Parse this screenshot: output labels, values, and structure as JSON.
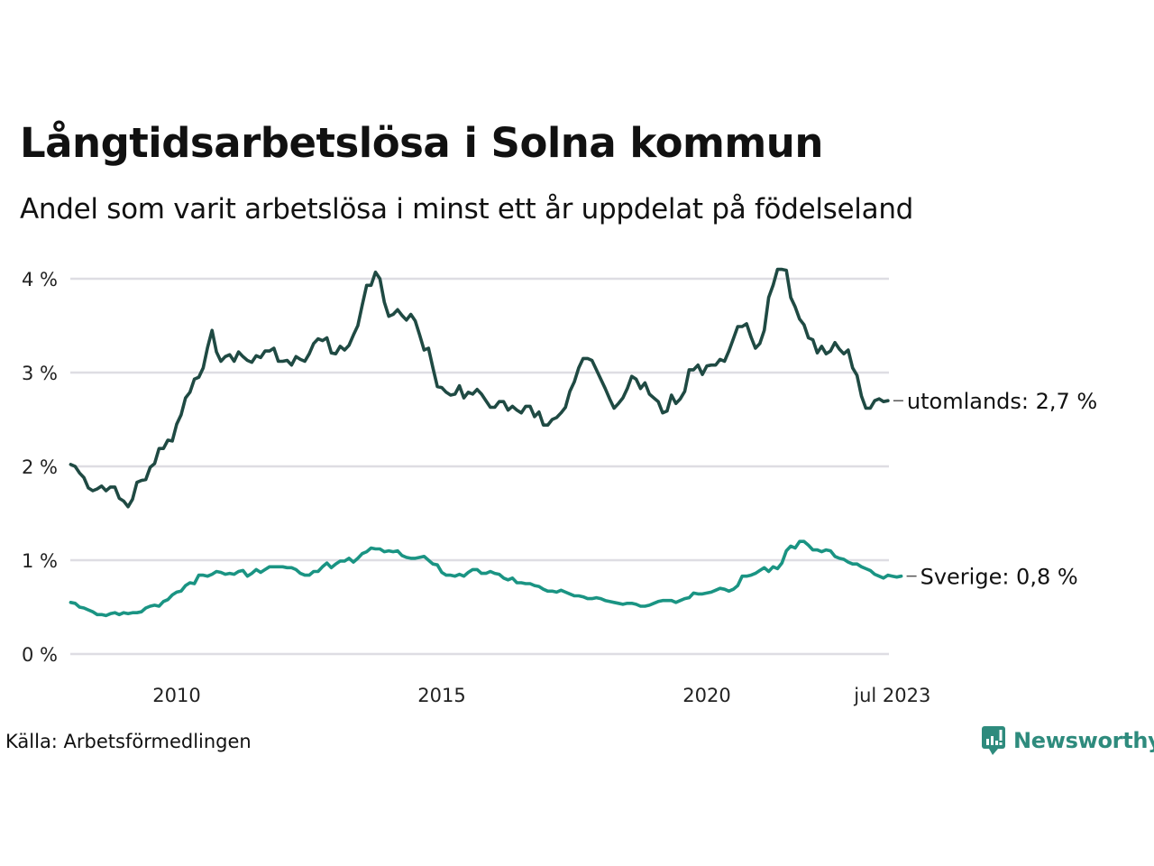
{
  "header": {
    "title": "Långtidsarbetslösa i Solna kommun",
    "subtitle": "Andel som varit arbetslösa i minst ett år uppdelat på födelseland"
  },
  "footer": {
    "source": "Källa: Arbetsförmedlingen",
    "brand": "Newsworthy",
    "brand_icon": "chart-bubble-icon",
    "brand_color": "#2e8b7d"
  },
  "chart_data": {
    "type": "line",
    "title": "Långtidsarbetslösa i Solna kommun",
    "subtitle": "Andel som varit arbetslösa i minst ett år uppdelat på födelseland",
    "xlabel": "",
    "ylabel": "",
    "x_start": "2008-01",
    "x_end": "2023-07",
    "x_frequency": "monthly",
    "x_ticks": [
      {
        "label": "2010",
        "year": 2010.0
      },
      {
        "label": "2015",
        "year": 2015.0
      },
      {
        "label": "2020",
        "year": 2020.0
      },
      {
        "label": "jul 2023",
        "year": 2023.5
      }
    ],
    "y_ticks": [
      {
        "label": "0 %",
        "value": 0
      },
      {
        "label": "1 %",
        "value": 1
      },
      {
        "label": "2 %",
        "value": 2
      },
      {
        "label": "3 %",
        "value": 3
      },
      {
        "label": "4 %",
        "value": 4
      }
    ],
    "ylim": [
      0,
      4
    ],
    "grid": "horizontal",
    "legend": "end-labels-right",
    "series": [
      {
        "name": "utomlands",
        "end_label": "utomlands: 2,7 %",
        "color": "#1f4a43",
        "values": [
          2.02,
          2.0,
          1.93,
          1.88,
          1.77,
          1.74,
          1.76,
          1.79,
          1.74,
          1.78,
          1.78,
          1.66,
          1.63,
          1.57,
          1.65,
          1.83,
          1.85,
          1.86,
          1.99,
          2.03,
          2.19,
          2.19,
          2.28,
          2.27,
          2.45,
          2.55,
          2.73,
          2.79,
          2.93,
          2.95,
          3.05,
          3.27,
          3.45,
          3.22,
          3.12,
          3.17,
          3.19,
          3.12,
          3.22,
          3.17,
          3.13,
          3.11,
          3.18,
          3.16,
          3.23,
          3.23,
          3.26,
          3.12,
          3.12,
          3.13,
          3.08,
          3.17,
          3.14,
          3.12,
          3.2,
          3.31,
          3.36,
          3.34,
          3.37,
          3.21,
          3.2,
          3.28,
          3.24,
          3.29,
          3.4,
          3.5,
          3.72,
          3.93,
          3.93,
          4.07,
          4.0,
          3.75,
          3.6,
          3.62,
          3.67,
          3.61,
          3.56,
          3.62,
          3.55,
          3.4,
          3.24,
          3.26,
          3.05,
          2.85,
          2.84,
          2.79,
          2.76,
          2.77,
          2.86,
          2.73,
          2.79,
          2.77,
          2.82,
          2.77,
          2.7,
          2.63,
          2.63,
          2.69,
          2.69,
          2.6,
          2.64,
          2.6,
          2.57,
          2.64,
          2.64,
          2.53,
          2.58,
          2.44,
          2.44,
          2.5,
          2.52,
          2.57,
          2.63,
          2.8,
          2.9,
          3.05,
          3.15,
          3.15,
          3.13,
          3.03,
          2.93,
          2.83,
          2.72,
          2.62,
          2.67,
          2.73,
          2.83,
          2.96,
          2.93,
          2.83,
          2.89,
          2.77,
          2.73,
          2.69,
          2.57,
          2.59,
          2.76,
          2.67,
          2.72,
          2.8,
          3.03,
          3.03,
          3.08,
          2.98,
          3.07,
          3.08,
          3.08,
          3.14,
          3.12,
          3.23,
          3.36,
          3.49,
          3.49,
          3.52,
          3.38,
          3.26,
          3.31,
          3.45,
          3.8,
          3.93,
          4.1,
          4.1,
          4.09,
          3.8,
          3.7,
          3.57,
          3.51,
          3.37,
          3.35,
          3.21,
          3.28,
          3.2,
          3.23,
          3.32,
          3.25,
          3.2,
          3.24,
          3.05,
          2.97,
          2.75,
          2.62,
          2.62,
          2.7,
          2.72,
          2.69,
          2.7
        ]
      },
      {
        "name": "Sverige",
        "end_label": "Sverige: 0,8 %",
        "color": "#1a9483",
        "values": [
          0.55,
          0.54,
          0.5,
          0.49,
          0.47,
          0.45,
          0.42,
          0.42,
          0.41,
          0.43,
          0.44,
          0.42,
          0.44,
          0.43,
          0.44,
          0.44,
          0.45,
          0.49,
          0.51,
          0.52,
          0.51,
          0.56,
          0.58,
          0.63,
          0.66,
          0.67,
          0.73,
          0.76,
          0.75,
          0.84,
          0.84,
          0.83,
          0.85,
          0.88,
          0.87,
          0.85,
          0.86,
          0.85,
          0.88,
          0.89,
          0.83,
          0.86,
          0.9,
          0.87,
          0.9,
          0.93,
          0.93,
          0.93,
          0.93,
          0.92,
          0.92,
          0.9,
          0.86,
          0.84,
          0.84,
          0.88,
          0.88,
          0.93,
          0.97,
          0.92,
          0.96,
          0.99,
          0.99,
          1.02,
          0.98,
          1.02,
          1.07,
          1.09,
          1.13,
          1.12,
          1.12,
          1.09,
          1.1,
          1.09,
          1.1,
          1.05,
          1.03,
          1.02,
          1.02,
          1.03,
          1.04,
          1.0,
          0.96,
          0.95,
          0.87,
          0.84,
          0.84,
          0.83,
          0.85,
          0.83,
          0.87,
          0.9,
          0.9,
          0.86,
          0.86,
          0.88,
          0.86,
          0.85,
          0.81,
          0.79,
          0.81,
          0.76,
          0.76,
          0.75,
          0.75,
          0.73,
          0.72,
          0.69,
          0.67,
          0.67,
          0.66,
          0.68,
          0.66,
          0.64,
          0.62,
          0.62,
          0.61,
          0.59,
          0.59,
          0.6,
          0.59,
          0.57,
          0.56,
          0.55,
          0.54,
          0.53,
          0.54,
          0.54,
          0.53,
          0.51,
          0.51,
          0.52,
          0.54,
          0.56,
          0.57,
          0.57,
          0.57,
          0.55,
          0.57,
          0.59,
          0.6,
          0.65,
          0.64,
          0.64,
          0.65,
          0.66,
          0.68,
          0.7,
          0.69,
          0.67,
          0.69,
          0.73,
          0.83,
          0.83,
          0.84,
          0.86,
          0.89,
          0.92,
          0.88,
          0.93,
          0.91,
          0.97,
          1.1,
          1.15,
          1.13,
          1.2,
          1.2,
          1.16,
          1.11,
          1.11,
          1.09,
          1.11,
          1.1,
          1.04,
          1.02,
          1.01,
          0.98,
          0.96,
          0.96,
          0.93,
          0.91,
          0.89,
          0.85,
          0.83,
          0.81,
          0.84,
          0.83,
          0.82,
          0.83
        ]
      }
    ]
  }
}
